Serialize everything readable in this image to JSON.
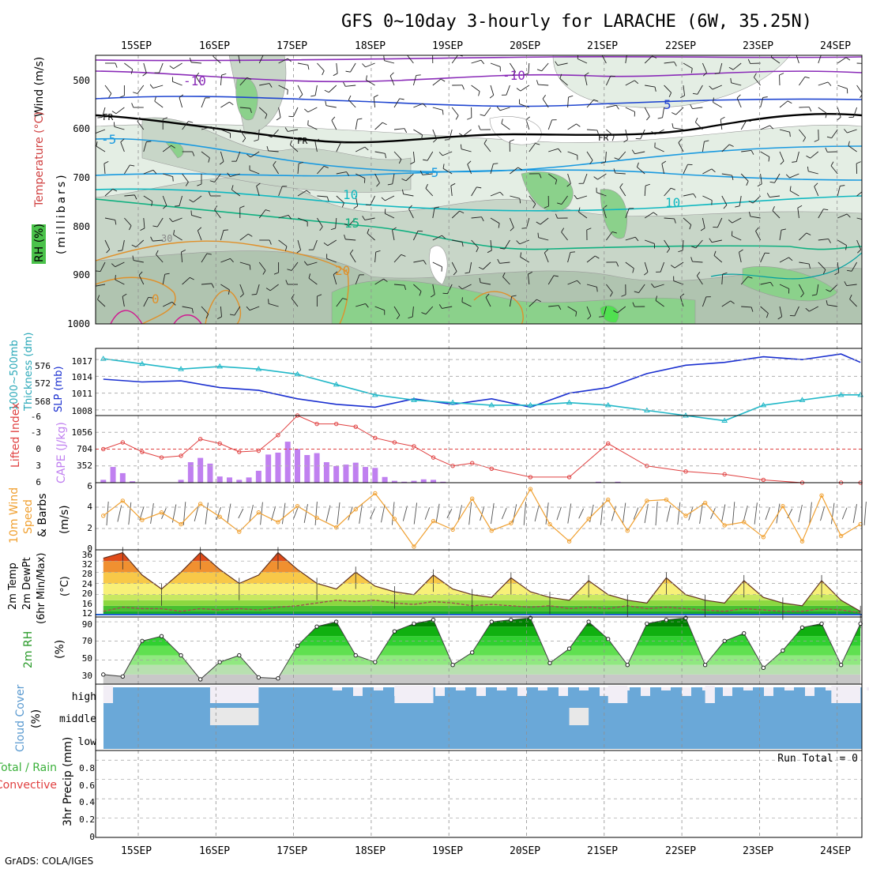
{
  "title": "GFS 0~10day 3-hourly for LARACHE (6W, 35.25N)",
  "credit": "GrADS: COLA/IGES",
  "dates": [
    "15SEP",
    "16SEP",
    "17SEP",
    "18SEP",
    "19SEP",
    "20SEP",
    "21SEP",
    "22SEP",
    "23SEP",
    "24SEP"
  ],
  "panels": {
    "upper": {
      "label_wind": "Wind (m/s)",
      "label_temp": "Temperature (°C)",
      "label_rh": "RH (%)",
      "label_mb": "(millibars)",
      "levels": [
        "500",
        "600",
        "700",
        "800",
        "900",
        "1000"
      ],
      "contour_labels": [
        "-10",
        "-10",
        "-5",
        "5",
        "FR",
        "FR",
        "FR",
        "-5",
        "10",
        "10",
        "15",
        "30",
        "20",
        "0"
      ]
    },
    "thickness": {
      "label_left": "1000~500mb",
      "label_left2": "Thickness (dm)",
      "label_right": "SLP (mb)",
      "left_ticks": [
        "576",
        "572",
        "568"
      ],
      "right_ticks": [
        "1017",
        "1014",
        "1011",
        "1008"
      ]
    },
    "cape": {
      "label_left": "Lifted Index",
      "label_right": "CAPE (J/kg)",
      "left_ticks": [
        "-6",
        "-3",
        "0",
        "3",
        "6"
      ],
      "right_ticks": [
        "1056",
        "704",
        "352"
      ]
    },
    "wind10": {
      "label1": "10m Wind",
      "label2": "Speed",
      "label3": "& Barbs",
      "unit": "(m/s)",
      "ticks": [
        "6",
        "4",
        "2",
        "0"
      ]
    },
    "temp": {
      "label1": "2m Temp",
      "label2": "2m DewPt",
      "label3": "(6hr Min/Max)",
      "unit": "(°C)",
      "ticks": [
        "36",
        "32",
        "28",
        "24",
        "20",
        "16",
        "12"
      ]
    },
    "rh": {
      "label": "2m RH",
      "unit": "(%)",
      "ticks": [
        "90",
        "70",
        "50",
        "30"
      ]
    },
    "cloud": {
      "label": "Cloud Cover",
      "unit": "(%)",
      "levels": [
        "high",
        "middle",
        "low"
      ]
    },
    "precip": {
      "label1": "Total / Rain",
      "label2": "Convective",
      "label3": "3hr Precip (mm)",
      "ticks": [
        "0.8",
        "0.6",
        "0.4",
        "0.2",
        "0"
      ],
      "run_total": "Run Total = 0"
    }
  },
  "colors": {
    "slp": "#1a2fd0",
    "thickness": "#22b8c8",
    "lifted_index": "#e04040",
    "cape": "#c080f0",
    "wind_speed": "#f0a030",
    "dewpoint": "#a05050",
    "rh_line": "#404040",
    "cloud": "#6aa8d8",
    "cloud_light": "#f2eef6"
  },
  "chart_data": [
    {
      "type": "line",
      "name": "thickness-slp",
      "x_unit": "forecast hour",
      "x_range": [
        0,
        234
      ],
      "series": [
        {
          "name": "SLP (mb)",
          "x": [
            0,
            12,
            24,
            36,
            48,
            60,
            72,
            84,
            96,
            108,
            120,
            132,
            144,
            156,
            168,
            180,
            192,
            204,
            216,
            228,
            234
          ],
          "values": [
            1013.5,
            1013,
            1013.2,
            1012,
            1011.5,
            1010,
            1009,
            1008.5,
            1010,
            1009,
            1010,
            1008.5,
            1011,
            1012,
            1014.5,
            1016,
            1016.5,
            1017.5,
            1017,
            1018,
            1016.5
          ]
        },
        {
          "name": "1000~500mb Thickness (dm)",
          "x": [
            0,
            12,
            24,
            36,
            48,
            60,
            72,
            84,
            96,
            108,
            120,
            132,
            144,
            156,
            168,
            180,
            192,
            204,
            216,
            228,
            234
          ],
          "values": [
            577,
            576,
            575,
            575.5,
            575,
            574,
            572,
            570,
            569,
            568.5,
            568,
            568,
            568.5,
            568,
            567,
            566,
            565,
            568,
            569,
            570,
            570
          ]
        }
      ]
    },
    {
      "type": "bar",
      "name": "cape-lifted-index",
      "x_unit": "forecast hour",
      "x": [
        0,
        3,
        6,
        9,
        24,
        27,
        30,
        33,
        36,
        39,
        42,
        45,
        48,
        51,
        54,
        57,
        60,
        63,
        66,
        69,
        72,
        75,
        78,
        81,
        84,
        87,
        90,
        93,
        96,
        99,
        102,
        105,
        108,
        111,
        114,
        117,
        120,
        153,
        159,
        168
      ],
      "cape_values": [
        60,
        330,
        200,
        30,
        60,
        430,
        520,
        400,
        130,
        110,
        60,
        110,
        250,
        590,
        630,
        860,
        710,
        580,
        620,
        430,
        350,
        380,
        420,
        330,
        310,
        120,
        40,
        20,
        40,
        70,
        60,
        20,
        0,
        0,
        0,
        0,
        0,
        20,
        20,
        0
      ],
      "lifted_index": {
        "x": [
          0,
          6,
          12,
          18,
          24,
          30,
          36,
          42,
          48,
          54,
          60,
          66,
          72,
          78,
          84,
          90,
          96,
          102,
          108,
          114,
          120,
          132,
          144,
          156,
          168,
          180,
          192,
          204,
          216,
          228,
          234
        ],
        "values": [
          0,
          -1.2,
          0.5,
          1.5,
          1.2,
          -1.8,
          -1,
          0.5,
          0.3,
          -2.5,
          -6,
          -4.5,
          -4.5,
          -4,
          -2,
          -1.2,
          -0.5,
          1.5,
          3,
          2.5,
          3.5,
          5,
          5,
          -1,
          3,
          4,
          4.5,
          5.5,
          6,
          6,
          6
        ]
      }
    },
    {
      "type": "line",
      "name": "10m-wind-speed",
      "unit": "m/s",
      "x": [
        0,
        6,
        12,
        18,
        24,
        30,
        36,
        42,
        48,
        54,
        60,
        66,
        72,
        78,
        84,
        90,
        96,
        102,
        108,
        114,
        120,
        126,
        132,
        138,
        144,
        150,
        156,
        162,
        168,
        174,
        180,
        186,
        192,
        198,
        204,
        210,
        216,
        222,
        228,
        234
      ],
      "values": [
        3.2,
        4.6,
        2.8,
        3.5,
        2.4,
        4.3,
        3.1,
        1.7,
        3.5,
        2.6,
        4.1,
        3.0,
        2.1,
        3.8,
        5.3,
        2.9,
        0.3,
        2.7,
        1.9,
        4.8,
        1.8,
        2.5,
        5.7,
        2.4,
        0.8,
        2.9,
        4.7,
        1.8,
        4.6,
        4.7,
        3.2,
        4.4,
        2.3,
        2.6,
        1.2,
        4.1,
        0.8,
        5.1,
        1.3,
        2.4
      ]
    },
    {
      "type": "area",
      "name": "2m-temp-dewpoint",
      "unit": "°C",
      "x": [
        0,
        6,
        12,
        18,
        24,
        30,
        36,
        42,
        48,
        54,
        60,
        66,
        72,
        78,
        84,
        90,
        96,
        102,
        108,
        114,
        120,
        126,
        132,
        138,
        144,
        150,
        156,
        162,
        168,
        174,
        180,
        186,
        192,
        198,
        204,
        210,
        216,
        222,
        228,
        234
      ],
      "temp": [
        33,
        35,
        27,
        22,
        28,
        35,
        29,
        24,
        27,
        35,
        29,
        24,
        22,
        28,
        23,
        21,
        20,
        27,
        22,
        20,
        19,
        26,
        21,
        19,
        18,
        25,
        20,
        18,
        17,
        26,
        20,
        18,
        17,
        25,
        19,
        17,
        16,
        25,
        18,
        14
      ],
      "dewpoint": [
        14,
        15.5,
        15,
        15,
        14,
        15,
        14.5,
        15,
        14.5,
        15.5,
        16,
        17,
        18,
        17.5,
        18,
        17,
        16.5,
        17.5,
        17,
        16,
        16.5,
        16,
        15.5,
        16,
        15,
        15.5,
        15,
        16,
        15,
        15.5,
        15,
        14.5,
        14,
        15,
        14.5,
        14,
        14,
        15,
        14.5,
        13.5
      ],
      "ylim": [
        12,
        36
      ]
    },
    {
      "type": "area",
      "name": "2m-rh",
      "unit": "%",
      "x": [
        0,
        6,
        12,
        18,
        24,
        30,
        36,
        42,
        48,
        54,
        60,
        66,
        72,
        78,
        84,
        90,
        96,
        102,
        108,
        114,
        120,
        126,
        132,
        138,
        144,
        150,
        156,
        162,
        168,
        174,
        180,
        186,
        192,
        198,
        204,
        210,
        216,
        222,
        228,
        234
      ],
      "values": [
        35,
        33,
        70,
        75,
        55,
        30,
        48,
        55,
        32,
        31,
        65,
        85,
        90,
        55,
        48,
        80,
        88,
        92,
        45,
        58,
        90,
        92,
        94,
        47,
        62,
        90,
        72,
        45,
        88,
        92,
        94,
        45,
        70,
        78,
        42,
        60,
        84,
        88,
        45,
        88
      ],
      "ylim": [
        25,
        95
      ]
    },
    {
      "type": "heatmap",
      "name": "cloud-cover",
      "levels": [
        "high",
        "middle",
        "low"
      ],
      "note_x": "forecast hour",
      "clear_high_segments": [
        [
          0,
          3
        ],
        [
          33,
          48
        ],
        [
          90,
          102
        ],
        [
          156,
          162
        ],
        [
          186,
          189
        ],
        [
          225,
          234
        ]
      ],
      "clear_middle_segments": [
        [
          33,
          48
        ],
        [
          144,
          150
        ]
      ]
    },
    {
      "type": "bar",
      "name": "3hr-precip",
      "unit": "mm",
      "ylim": [
        0,
        0.9
      ],
      "values": []
    }
  ]
}
